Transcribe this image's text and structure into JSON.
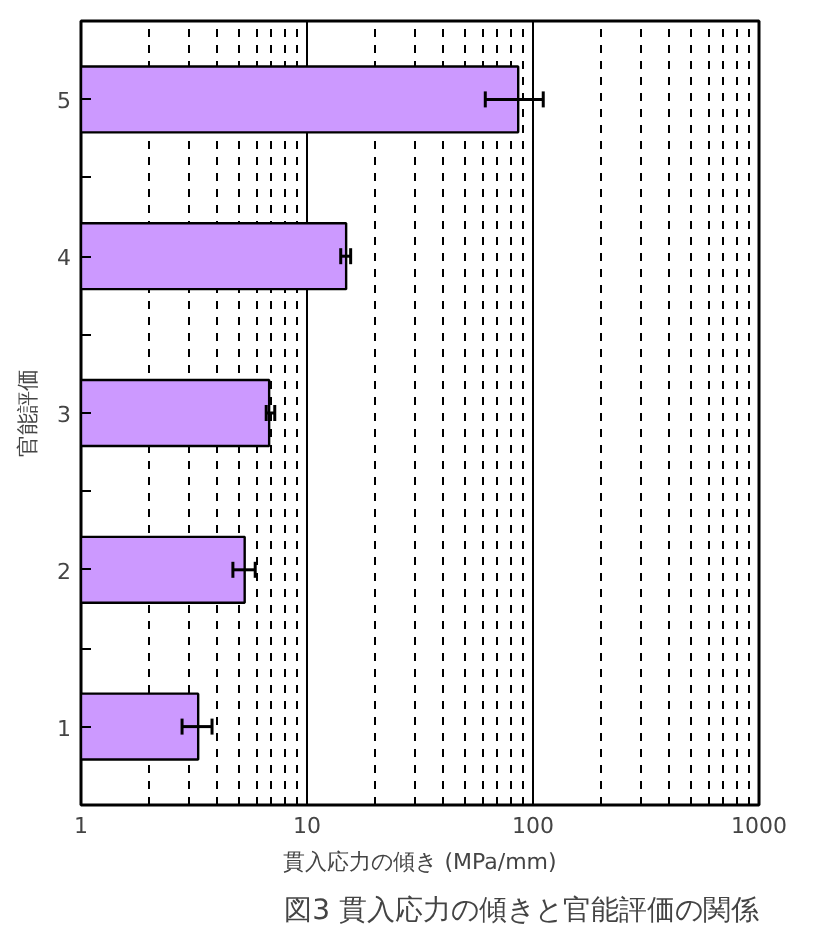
{
  "chart_data": {
    "type": "bar",
    "orientation": "horizontal",
    "title": "図3 貫入応力の傾きと官能評価の関係",
    "xlabel": "貫入応力の傾き (MPa/mm)",
    "ylabel": "官能評価",
    "categories": [
      "5",
      "4",
      "3",
      "2",
      "1"
    ],
    "values": [
      86,
      14.9,
      6.8,
      5.3,
      3.3
    ],
    "errors": [
      [
        61.5,
        111
      ],
      [
        14.1,
        15.6
      ],
      [
        6.6,
        7.2
      ],
      [
        4.7,
        5.9
      ],
      [
        2.8,
        3.8
      ]
    ],
    "color": "#cc99ff",
    "log": "x",
    "xlim": [
      1,
      1000
    ],
    "xticks": [
      1,
      10,
      100,
      1000
    ],
    "grid": "x"
  }
}
